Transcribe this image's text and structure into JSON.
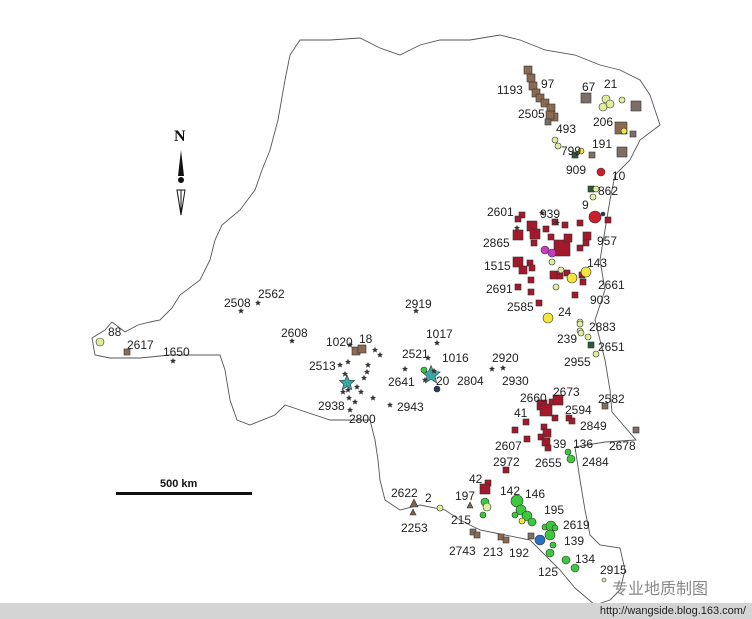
{
  "map": {
    "north_label": "N",
    "scale_label": "500 km",
    "watermark": "专业地质制图",
    "footer_url": "http://wangside.blog.163.com/",
    "symbol_colors": {
      "brown_square": "#8c6a52",
      "grey_square": "#7d6e66",
      "darkred_square": "#a3192b",
      "red_circle": "#cc1f2a",
      "yellow_circle": "#f2e63c",
      "palegreen_circle": "#dfee9a",
      "green_circle": "#3cc83c",
      "dark_star": "#333333",
      "teal_star": "#3aa6a6",
      "blue_circle": "#2a6fc4",
      "magenta_circle": "#c43ec4",
      "navy_circle": "#2c3b58",
      "brown_triangle": "#7a6650",
      "darkgreen_square": "#2b5a3a"
    },
    "labels": [
      "1193",
      "97",
      "67",
      "21",
      "2505",
      "493",
      "206",
      "799",
      "191",
      "909",
      "10",
      "862",
      "9",
      "2601",
      "939",
      "2865",
      "957",
      "1515",
      "143",
      "2691",
      "2661",
      "903",
      "2585",
      "24",
      "2883",
      "239",
      "2651",
      "2955",
      "2508",
      "2562",
      "2919",
      "2608",
      "1017",
      "1020",
      "18",
      "2513",
      "2521",
      "1016",
      "2641",
      "2920",
      "20",
      "2804",
      "2930",
      "2938",
      "2943",
      "2800",
      "88",
      "2617",
      "1650",
      "2660",
      "2673",
      "2582",
      "41",
      "2594",
      "2849",
      "2607",
      "39",
      "136",
      "2678",
      "2655",
      "2484",
      "2972",
      "42",
      "142",
      "146",
      "197",
      "2622",
      "2",
      "195",
      "215",
      "2253",
      "2619",
      "139",
      "2743",
      "213",
      "192",
      "134",
      "125",
      "2915"
    ]
  }
}
